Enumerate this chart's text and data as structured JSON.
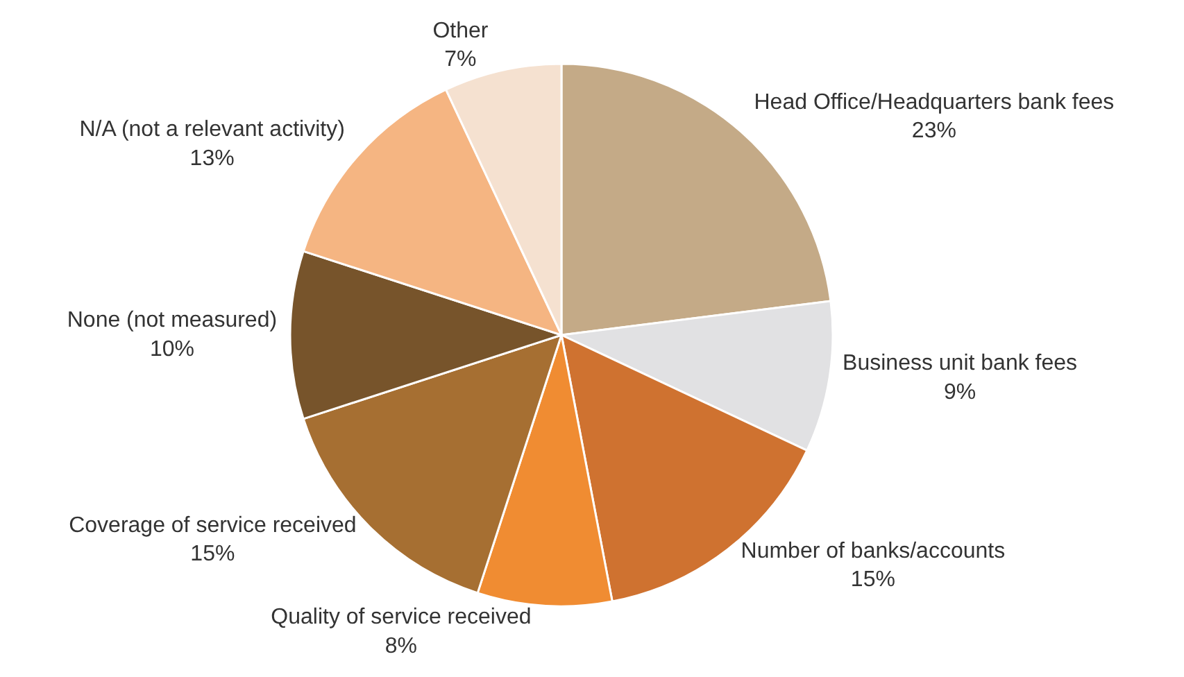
{
  "chart_data": {
    "type": "pie",
    "categories": [
      "Head Office/Headquarters bank fees",
      "Business unit bank fees",
      "Number of banks/accounts",
      "Quality of service received",
      "Coverage of service received",
      "None (not measured)",
      "N/A (not a relevant activity)",
      "Other"
    ],
    "values": [
      23,
      9,
      15,
      8,
      15,
      10,
      13,
      7
    ],
    "value_labels": [
      "23%",
      "9%",
      "15%",
      "8%",
      "15%",
      "10%",
      "13%",
      "7%"
    ],
    "colors": [
      "#c4aa87",
      "#e1e1e3",
      "#cf7230",
      "#f08c32",
      "#a66f32",
      "#77542b",
      "#f5b582",
      "#f5e1d0"
    ],
    "legend": false
  }
}
